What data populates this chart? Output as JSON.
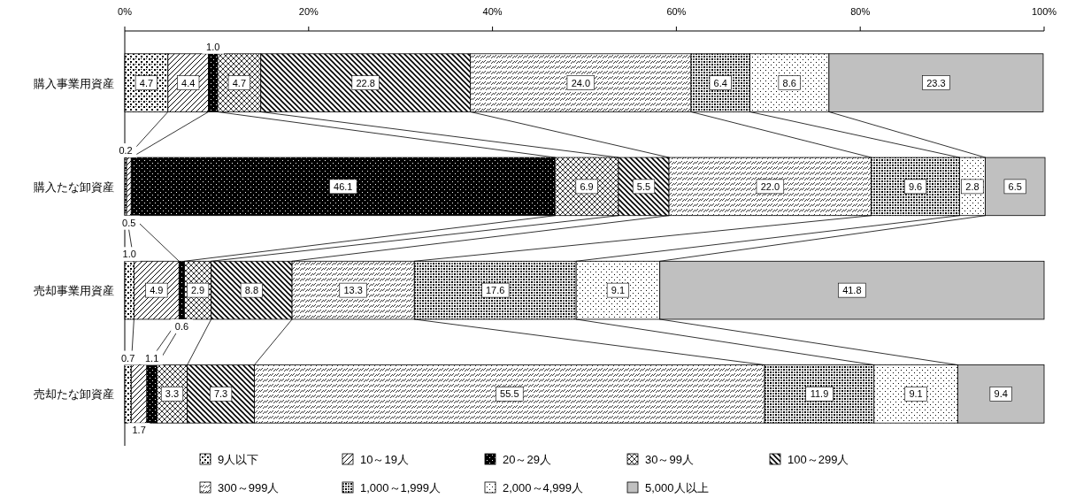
{
  "chart_data": {
    "type": "bar",
    "orientation": "horizontal",
    "stacked": true,
    "legend": "bottom",
    "grid": false,
    "categories": [
      "購入事業用資産",
      "購入たな卸資産",
      "売却事業用資産",
      "売却たな卸資産"
    ],
    "xlim": [
      0,
      100
    ],
    "xticks": [
      {
        "value": 0,
        "label": "0%"
      },
      {
        "value": 20,
        "label": "20%"
      },
      {
        "value": 40,
        "label": "40%"
      },
      {
        "value": 60,
        "label": "60%"
      },
      {
        "value": 80,
        "label": "80%"
      },
      {
        "value": 100,
        "label": "100%"
      }
    ],
    "series": [
      {
        "name": "9人以下",
        "color": "#000000",
        "values": [
          4.7,
          0.2,
          1.0,
          0.7
        ],
        "value_labels": [
          "4.7",
          "0.2",
          "1.0",
          "0.7"
        ]
      },
      {
        "name": "10～19人",
        "color": "#000000",
        "values": [
          4.4,
          0.5,
          4.9,
          1.7
        ],
        "value_labels": [
          "4.4",
          "0.5",
          "4.9",
          "1.7"
        ]
      },
      {
        "name": "20～29人",
        "color": "#000000",
        "values": [
          1.0,
          46.1,
          0.6,
          1.1
        ],
        "value_labels": [
          "1.0",
          "46.1",
          "0.6",
          "1.1"
        ]
      },
      {
        "name": "30～99人",
        "color": "#000000",
        "values": [
          4.7,
          6.9,
          2.9,
          3.3
        ],
        "value_labels": [
          "4.7",
          "6.9",
          "2.9",
          "3.3"
        ]
      },
      {
        "name": "100～299人",
        "color": "#000000",
        "values": [
          22.8,
          5.5,
          8.8,
          7.3
        ],
        "value_labels": [
          "22.8",
          "5.5",
          "8.8",
          "7.3"
        ]
      },
      {
        "name": "300～999人",
        "color": "#000000",
        "values": [
          24.0,
          22.0,
          13.3,
          55.5
        ],
        "value_labels": [
          "24.0",
          "22.0",
          "13.3",
          "55.5"
        ]
      },
      {
        "name": "1,000～1,999人",
        "color": "#000000",
        "values": [
          6.4,
          9.6,
          17.6,
          11.9
        ],
        "value_labels": [
          "6.4",
          "9.6",
          "17.6",
          "11.9"
        ]
      },
      {
        "name": "2,000～4,999人",
        "color": "#000000",
        "values": [
          8.6,
          2.8,
          9.1,
          9.1
        ],
        "value_labels": [
          "8.6",
          "2.8",
          "9.1",
          "9.1"
        ]
      },
      {
        "name": "5,000人以上",
        "color": "#c0c0c0",
        "values": [
          23.3,
          6.5,
          41.8,
          9.4
        ],
        "value_labels": [
          "23.3",
          "6.5",
          "41.8",
          "9.4"
        ]
      }
    ]
  }
}
